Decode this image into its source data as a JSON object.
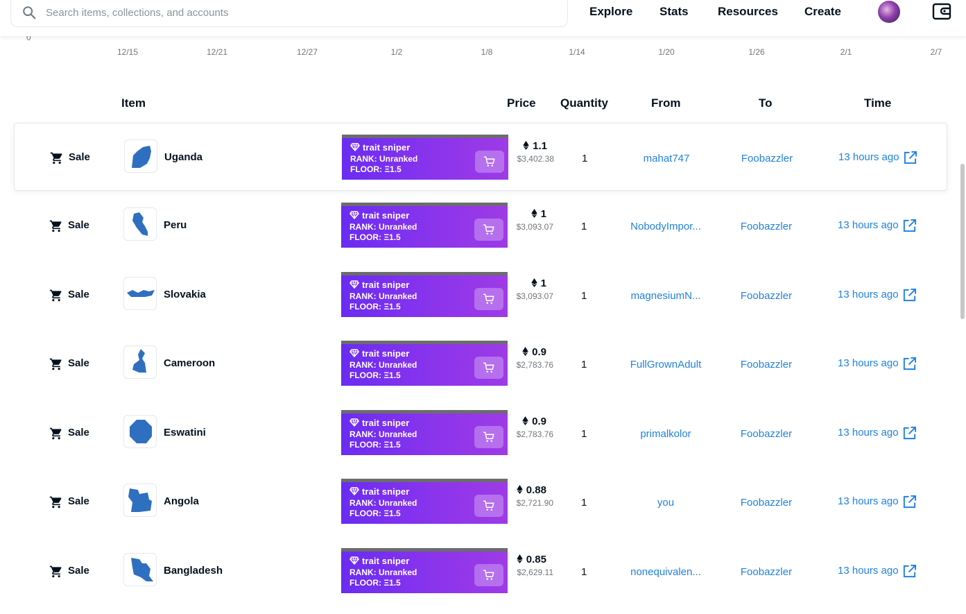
{
  "search": {
    "placeholder": "Search items, collections, and accounts",
    "icon": "search-icon"
  },
  "nav": {
    "explore": "Explore",
    "stats": "Stats",
    "resources": "Resources",
    "create": "Create"
  },
  "chart_axis": {
    "y_zero": "0",
    "x_ticks": [
      "12/15",
      "12/21",
      "12/27",
      "1/2",
      "1/8",
      "1/14",
      "1/20",
      "1/26",
      "2/1",
      "2/7"
    ]
  },
  "table": {
    "headers": {
      "item": "Item",
      "price": "Price",
      "quantity": "Quantity",
      "from": "From",
      "to": "To",
      "time": "Time"
    },
    "rows": [
      {
        "event": "Sale",
        "item": "Uganda",
        "price_eth": "1.1",
        "price_usd": "$3,402.38",
        "quantity": "1",
        "from": "mahat747",
        "to": "Foobazzler",
        "time": "13 hours ago"
      },
      {
        "event": "Sale",
        "item": "Peru",
        "price_eth": "1",
        "price_usd": "$3,093.07",
        "quantity": "1",
        "from": "NobodyImpor...",
        "to": "Foobazzler",
        "time": "13 hours ago"
      },
      {
        "event": "Sale",
        "item": "Slovakia",
        "price_eth": "1",
        "price_usd": "$3,093.07",
        "quantity": "1",
        "from": "magnesiumN...",
        "to": "Foobazzler",
        "time": "13 hours ago"
      },
      {
        "event": "Sale",
        "item": "Cameroon",
        "price_eth": "0.9",
        "price_usd": "$2,783.76",
        "quantity": "1",
        "from": "FullGrownAdult",
        "to": "Foobazzler",
        "time": "13 hours ago"
      },
      {
        "event": "Sale",
        "item": "Eswatini",
        "price_eth": "0.9",
        "price_usd": "$2,783.76",
        "quantity": "1",
        "from": "primalkolor",
        "to": "Foobazzler",
        "time": "13 hours ago"
      },
      {
        "event": "Sale",
        "item": "Angola",
        "price_eth": "0.88",
        "price_usd": "$2,721.90",
        "quantity": "1",
        "from": "you",
        "to": "Foobazzler",
        "time": "13 hours ago"
      },
      {
        "event": "Sale",
        "item": "Bangladesh",
        "price_eth": "0.85",
        "price_usd": "$2,629.11",
        "quantity": "1",
        "from": "nonequivalen...",
        "to": "Foobazzler",
        "time": "13 hours ago"
      }
    ]
  },
  "trait_sniper": {
    "title": "trait sniper",
    "rank": "RANK:  Unranked",
    "floor": "FLOOR:  Ξ1.5"
  },
  "colors": {
    "link": "#2081e2",
    "sniper_start": "#6a2cf2",
    "sniper_end": "#9e3be6",
    "map_fill": "#2f6fc0"
  },
  "icons": [
    "search-icon",
    "avatar",
    "wallet-icon",
    "cart-icon",
    "diamond-icon",
    "ethereum-icon",
    "external-link-icon"
  ]
}
